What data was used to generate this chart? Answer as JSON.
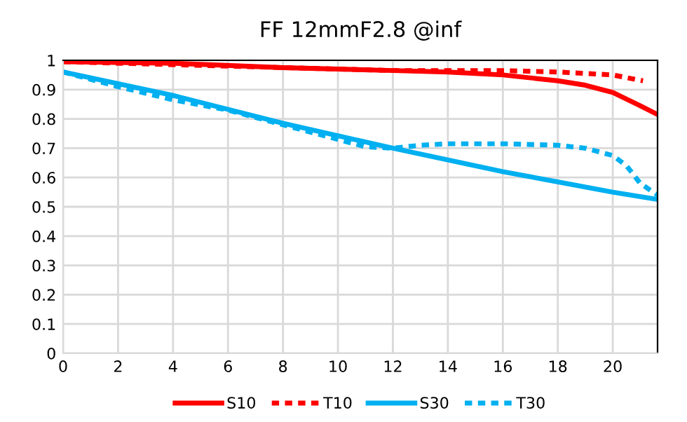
{
  "chart_data": {
    "type": "line",
    "title": "FF 12mmF2.8 @inf",
    "xlim": [
      0,
      21.63
    ],
    "xticks": [
      0,
      2,
      4,
      6,
      8,
      10,
      12,
      14,
      16,
      18,
      20
    ],
    "ylim": [
      0,
      1
    ],
    "yticks": [
      0,
      {
        "value": 0.1,
        "label": "0.1"
      },
      {
        "value": 0.2,
        "label": "0.2"
      },
      {
        "value": 0.3,
        "label": "0.3"
      },
      {
        "value": 0.4,
        "label": "0.4"
      },
      {
        "value": 0.5,
        "label": "0.5"
      },
      {
        "value": 0.6,
        "label": "0.6"
      },
      {
        "value": 0.7,
        "label": "0.7"
      },
      {
        "value": 0.8,
        "label": "0.8"
      },
      {
        "value": 0.9,
        "label": "0.9"
      },
      1
    ],
    "grid": true,
    "legend": "bottom",
    "marker": "none",
    "series": [
      {
        "name": "S10",
        "color": "#ff0000",
        "line_style": "solid",
        "x": [
          0,
          4,
          8,
          12,
          14,
          16,
          18,
          19,
          20,
          21,
          21.63
        ],
        "values": [
          0.995,
          0.99,
          0.975,
          0.965,
          0.96,
          0.95,
          0.93,
          0.915,
          0.89,
          0.845,
          0.815
        ]
      },
      {
        "name": "T10",
        "color": "#ff0000",
        "line_style": "dashed",
        "x": [
          0,
          2,
          4,
          6,
          8,
          10,
          12,
          16,
          18,
          20,
          21.1
        ],
        "values": [
          0.995,
          0.99,
          0.985,
          0.98,
          0.975,
          0.97,
          0.965,
          0.965,
          0.96,
          0.95,
          0.93
        ]
      },
      {
        "name": "S30",
        "color": "#00b0f0",
        "line_style": "solid",
        "x": [
          0,
          4,
          8,
          12,
          16,
          20,
          21.63
        ],
        "values": [
          0.96,
          0.88,
          0.785,
          0.7,
          0.62,
          0.55,
          0.525
        ]
      },
      {
        "name": "T30",
        "color": "#00b0f0",
        "line_style": "dashed",
        "x": [
          0,
          2,
          4,
          6,
          8,
          10,
          11,
          12,
          13,
          14,
          16,
          18,
          19,
          20,
          20.5,
          21,
          21.63
        ],
        "values": [
          0.96,
          0.91,
          0.865,
          0.83,
          0.78,
          0.73,
          0.705,
          0.7,
          0.71,
          0.715,
          0.715,
          0.71,
          0.7,
          0.675,
          0.64,
          0.58,
          0.54
        ]
      }
    ]
  }
}
